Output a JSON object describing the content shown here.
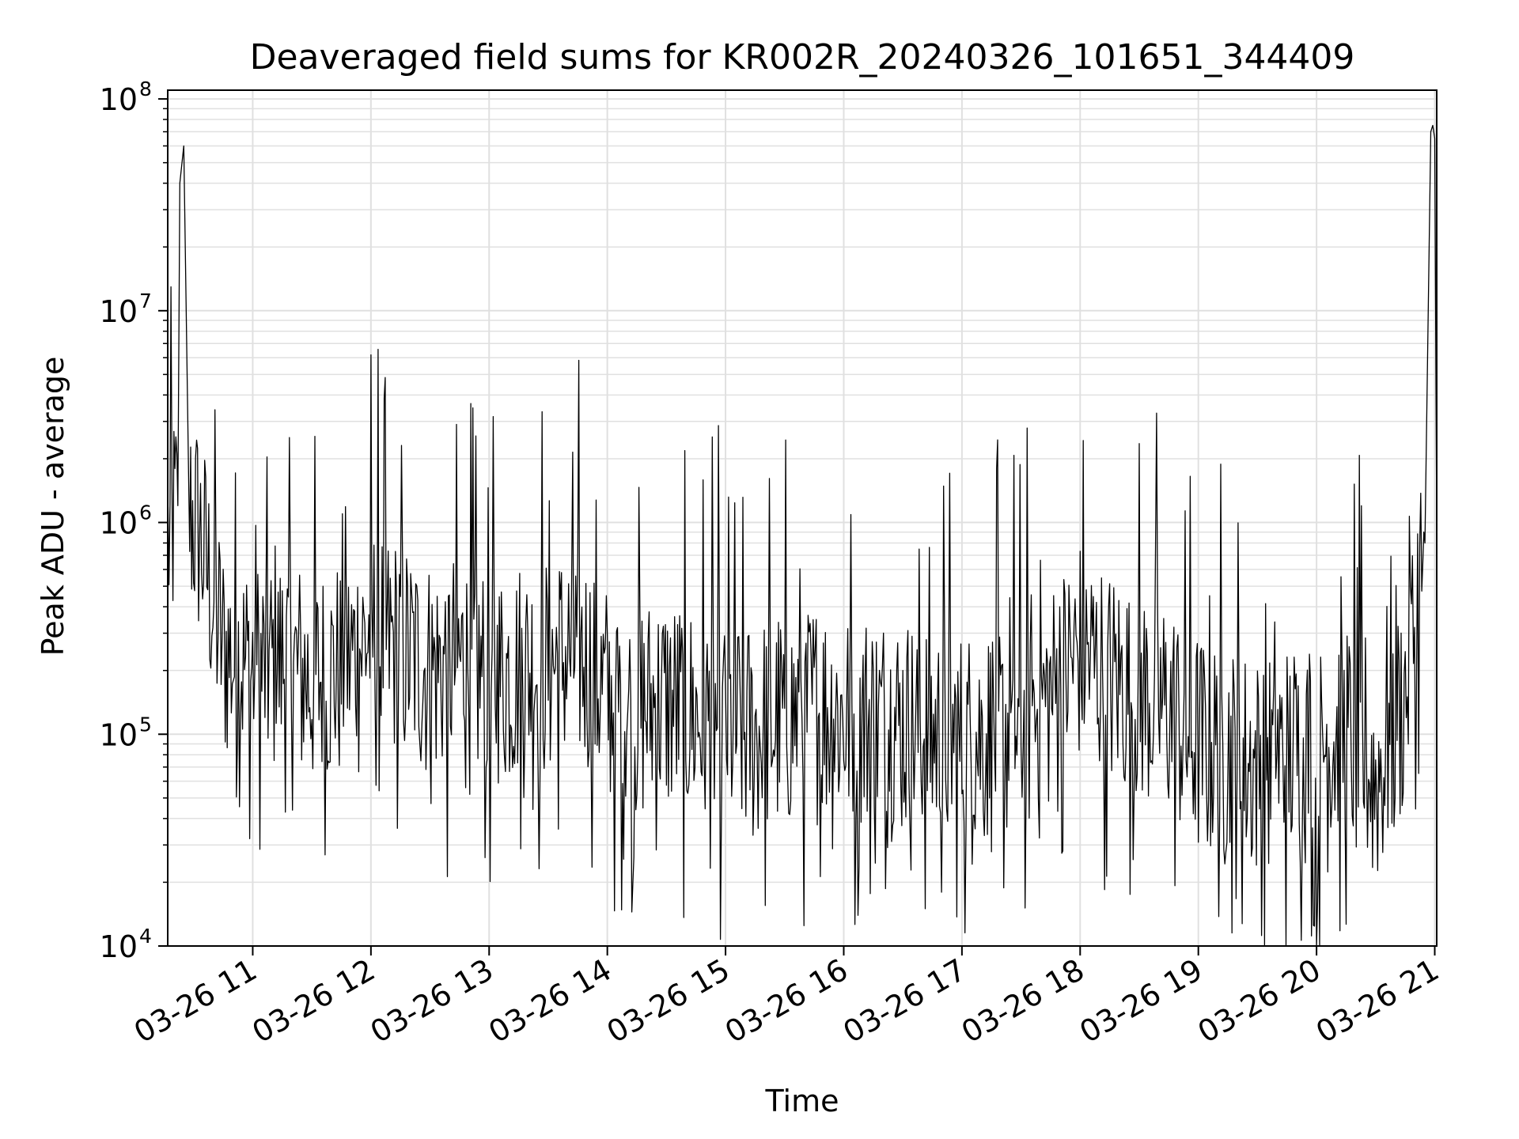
{
  "chart_data": {
    "type": "line",
    "title": "Deaveraged field sums for KR002R_20240326_101651_344409",
    "xlabel": "Time",
    "ylabel": "Peak ADU - average",
    "yscale": "log",
    "ylim": [
      10000,
      110000000
    ],
    "xlim": [
      "03-26 10:16:51",
      "03-26 21:01"
    ],
    "grid": true,
    "line_color": "#000000",
    "grid_color": "#e0e0e0",
    "x_ticks": [
      "03-26 11",
      "03-26 12",
      "03-26 13",
      "03-26 14",
      "03-26 15",
      "03-26 16",
      "03-26 17",
      "03-26 18",
      "03-26 19",
      "03-26 20",
      "03-26 21"
    ],
    "y_ticks": [
      {
        "value": 10000,
        "base": "10",
        "exp": "4"
      },
      {
        "value": 100000,
        "base": "10",
        "exp": "5"
      },
      {
        "value": 1000000,
        "base": "10",
        "exp": "6"
      },
      {
        "value": 10000000,
        "base": "10",
        "exp": "7"
      },
      {
        "value": 100000000,
        "base": "10",
        "exp": "8"
      }
    ],
    "series": [
      {
        "x": [
          "03-26 10:17",
          "03-26 10:22",
          "03-26 10:23",
          "03-26 10:25",
          "03-26 10:28",
          "03-26 10:33",
          "03-26 10:45",
          "03-26 11:00",
          "03-26 11:15",
          "03-26 11:30",
          "03-26 11:45",
          "03-26 12:00",
          "03-26 12:15",
          "03-26 12:30",
          "03-26 12:45",
          "03-26 13:00",
          "03-26 13:15",
          "03-26 13:30",
          "03-26 13:45",
          "03-26 14:00",
          "03-26 14:15",
          "03-26 14:30",
          "03-26 14:45",
          "03-26 15:00",
          "03-26 15:15",
          "03-26 15:30",
          "03-26 15:45",
          "03-26 16:00",
          "03-26 16:15",
          "03-26 16:30",
          "03-26 16:45",
          "03-26 17:00",
          "03-26 17:15",
          "03-26 17:30",
          "03-26 17:45",
          "03-26 18:00",
          "03-26 18:15",
          "03-26 18:30",
          "03-26 18:45",
          "03-26 19:00",
          "03-26 19:15",
          "03-26 19:30",
          "03-26 19:45",
          "03-26 20:00",
          "03-26 20:15",
          "03-26 20:30",
          "03-26 20:45",
          "03-26 20:55",
          "03-26 20:58",
          "03-26 20:59",
          "03-26 21:00",
          "03-26 21:01"
        ],
        "values": [
          800000,
          1200000,
          40000000,
          60000000,
          1100000,
          900000,
          250000,
          200000,
          220000,
          180000,
          200000,
          300000,
          250000,
          200000,
          220000,
          180000,
          200000,
          210000,
          250000,
          150000,
          130000,
          140000,
          120000,
          110000,
          100000,
          120000,
          130000,
          120000,
          115000,
          110000,
          100000,
          90000,
          100000,
          110000,
          150000,
          250000,
          180000,
          160000,
          130000,
          90000,
          80000,
          70000,
          80000,
          90000,
          100000,
          60000,
          150000,
          800000,
          70000000,
          75000000,
          65000000,
          900000
        ]
      }
    ]
  }
}
